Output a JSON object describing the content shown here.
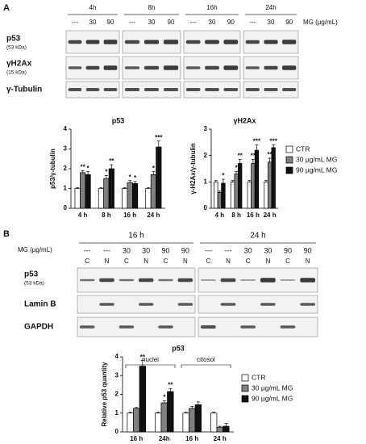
{
  "panel_a": {
    "label": "A",
    "times": [
      "4h",
      "8h",
      "16h",
      "24h"
    ],
    "doses": [
      "---",
      "30",
      "90"
    ],
    "dose_label": "MG (µg/mL)",
    "rows": [
      {
        "name": "p53",
        "weight": "(53 kDa)"
      },
      {
        "name": "γH2Ax",
        "weight": "(15 kDa)"
      },
      {
        "name": "γ-Tubulin"
      }
    ]
  },
  "panel_b": {
    "label": "B",
    "times": [
      "16 h",
      "24 h"
    ],
    "dose_label": "MG (µg/mL)",
    "doses": [
      "---",
      "---",
      "30",
      "30",
      "90",
      "90"
    ],
    "fractions": [
      "C",
      "N",
      "C",
      "N",
      "C",
      "N"
    ],
    "rows": [
      {
        "name": "p53",
        "weight": "(53 kDa)"
      },
      {
        "name": "Lamin B"
      },
      {
        "name": "GAPDH"
      }
    ]
  },
  "chart_data": [
    {
      "type": "bar",
      "title": "p53",
      "y_label": "p53/γ-tubulin",
      "categories": [
        "4 h",
        "8 h",
        "16 h",
        "24 h"
      ],
      "ylim": [
        0,
        4
      ],
      "yticks": [
        0,
        1,
        2,
        3,
        4
      ],
      "legend": true,
      "series": [
        {
          "name": "CTR",
          "color": "#ffffff",
          "values": [
            1,
            1,
            1,
            1
          ],
          "errors": [
            0.05,
            0.05,
            0.05,
            0.05
          ],
          "stars": [
            null,
            null,
            null,
            null
          ]
        },
        {
          "name": "30 µg/mL MG",
          "color": "#808080",
          "values": [
            1.8,
            1.5,
            1.3,
            1.7
          ],
          "errors": [
            0.1,
            0.15,
            0.1,
            0.15
          ],
          "stars": [
            "**",
            "*",
            "*",
            "*"
          ]
        },
        {
          "name": "90 µg/mL MG",
          "color": "#111111",
          "values": [
            1.7,
            2.0,
            1.25,
            3.1
          ],
          "errors": [
            0.15,
            0.2,
            0.1,
            0.3
          ],
          "stars": [
            "*",
            "**",
            "*",
            "***"
          ]
        }
      ]
    },
    {
      "type": "bar",
      "title": "γH2Ax",
      "y_label": "γ-H2Ax/γ-tubulin",
      "categories": [
        "4 h",
        "8 h",
        "16 h",
        "24 h"
      ],
      "ylim": [
        0,
        3
      ],
      "yticks": [
        0,
        1,
        2,
        3
      ],
      "legend": false,
      "series": [
        {
          "color": "#ffffff",
          "values": [
            1,
            1,
            1,
            1
          ],
          "errors": [
            0.05,
            0.05,
            0.05,
            0.05
          ],
          "stars": [
            null,
            null,
            null,
            null
          ]
        },
        {
          "color": "#808080",
          "values": [
            0.6,
            1.3,
            1.7,
            1.75
          ],
          "errors": [
            0.05,
            0.1,
            0.15,
            0.15
          ],
          "stars": [
            null,
            "*",
            "**",
            "**"
          ]
        },
        {
          "color": "#111111",
          "values": [
            0.95,
            1.7,
            2.2,
            2.3
          ],
          "errors": [
            0.15,
            0.15,
            0.2,
            0.1
          ],
          "stars": [
            "*",
            "**",
            "***",
            "***"
          ]
        }
      ]
    },
    {
      "type": "bar",
      "title": "p53",
      "y_label": "Relative p53 quantity",
      "categories": [
        "16 h",
        "24h",
        "16 h",
        "24 h"
      ],
      "groups": [
        "nuclei",
        "citosol"
      ],
      "ylim": [
        0,
        4
      ],
      "yticks": [
        0,
        1,
        2,
        3,
        4
      ],
      "legend": true,
      "series": [
        {
          "name": "CTR",
          "color": "#ffffff",
          "values": [
            1,
            1,
            1,
            1
          ],
          "errors": [
            0.05,
            0.05,
            0.05,
            0.05
          ],
          "stars": [
            null,
            null,
            null,
            null
          ]
        },
        {
          "name": "30 µg/mL MG",
          "color": "#808080",
          "values": [
            1.25,
            1.55,
            1.25,
            0.25
          ],
          "errors": [
            0.05,
            0.1,
            0.1,
            0.05
          ],
          "stars": [
            null,
            "*",
            null,
            null
          ]
        },
        {
          "name": "90 µg/mL MG",
          "color": "#111111",
          "values": [
            3.5,
            2.15,
            1.45,
            0.3
          ],
          "errors": [
            0.3,
            0.15,
            0.15,
            0.15
          ],
          "stars": [
            "**",
            "**",
            null,
            null
          ]
        }
      ]
    }
  ]
}
